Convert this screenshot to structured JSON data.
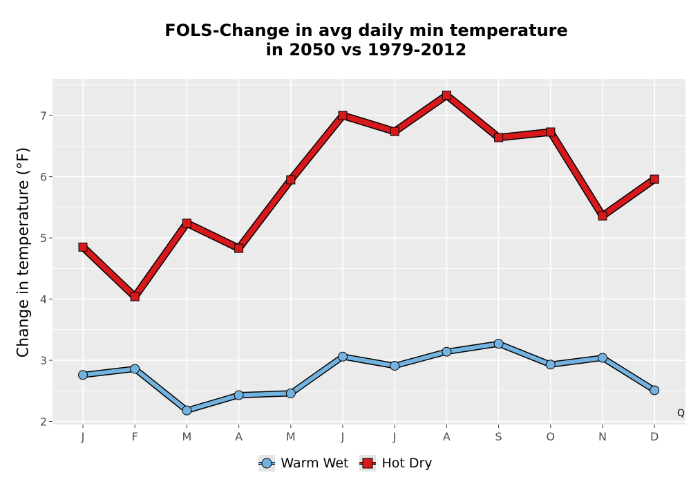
{
  "chart_data": {
    "type": "line",
    "title_lines": [
      "FOLS-Change in avg daily min temperature",
      "in 2050 vs 1979-2012"
    ],
    "xlabel": "",
    "ylabel": "Change in temperature (°F)",
    "categories": [
      "J",
      "F",
      "M",
      "A",
      "M",
      "J",
      "J",
      "A",
      "S",
      "O",
      "N",
      "D"
    ],
    "y_ticks": [
      2,
      3,
      4,
      5,
      6,
      7
    ],
    "ylim": [
      1.95,
      7.6
    ],
    "grid": true,
    "legend_position": "bottom",
    "series": [
      {
        "name": "Warm Wet",
        "marker": "circle",
        "fill_color": "#74b3e0",
        "values": [
          2.76,
          2.86,
          2.18,
          2.43,
          2.46,
          3.06,
          2.91,
          3.14,
          3.27,
          2.93,
          3.04,
          2.51
        ]
      },
      {
        "name": "Hot Dry",
        "marker": "square",
        "fill_color": "#d7191c",
        "values": [
          4.85,
          4.04,
          5.24,
          4.83,
          5.95,
          7.0,
          6.74,
          7.33,
          6.64,
          6.73,
          5.36,
          5.96
        ]
      }
    ]
  },
  "corner_note": "Q",
  "colors": {
    "panel_bg": "#ebebeb",
    "grid": "#ffffff",
    "outline": "#000000"
  }
}
